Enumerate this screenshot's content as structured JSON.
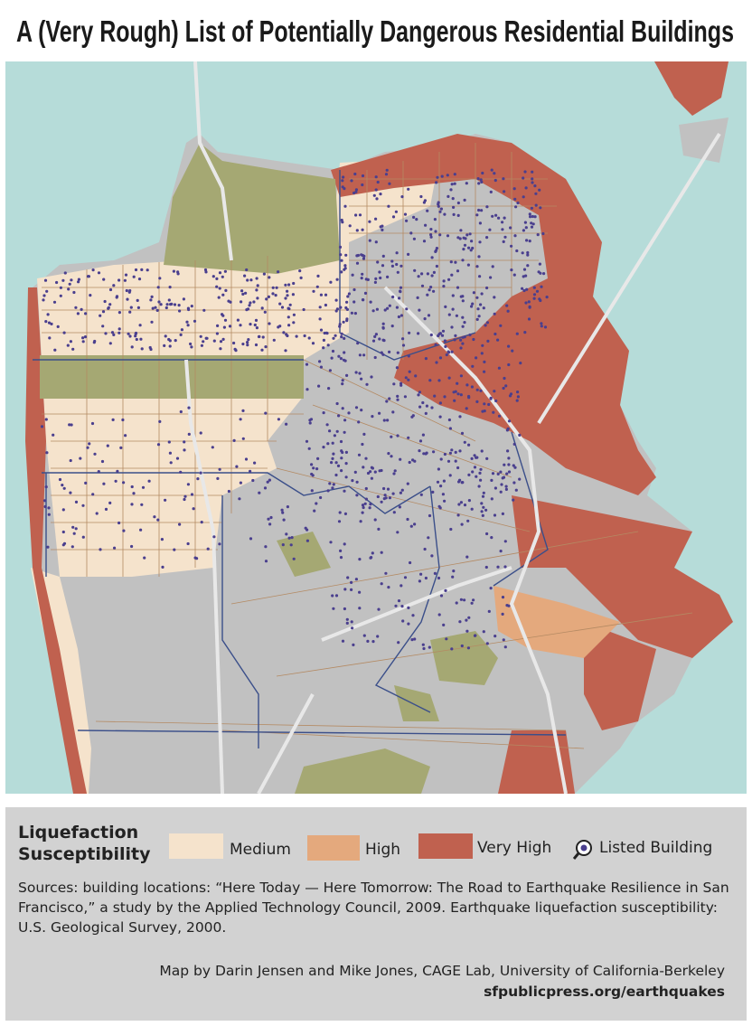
{
  "header": {
    "title": "A (Very Rough) List of Potentially Dangerous Residential Buildings"
  },
  "legend": {
    "title": [
      "Liquefaction",
      "Susceptibility"
    ],
    "items": [
      "Medium",
      "High",
      "Very High",
      "Listed Building"
    ]
  },
  "footer": {
    "sources": "Sources:  building locations: “Here Today — Here Tomorrow: The Road to Earthquake Resilience in San Francisco,” a study by the Applied Technology Council, 2009. Earthquake liquefaction susceptibility: U.S. Geological Survey, 2000.",
    "credit": "Map by Darin Jensen and Mike Jones, CAGE Lab, University of California-Berkeley",
    "url": "sfpublicpress.org/earthquakes"
  }
}
